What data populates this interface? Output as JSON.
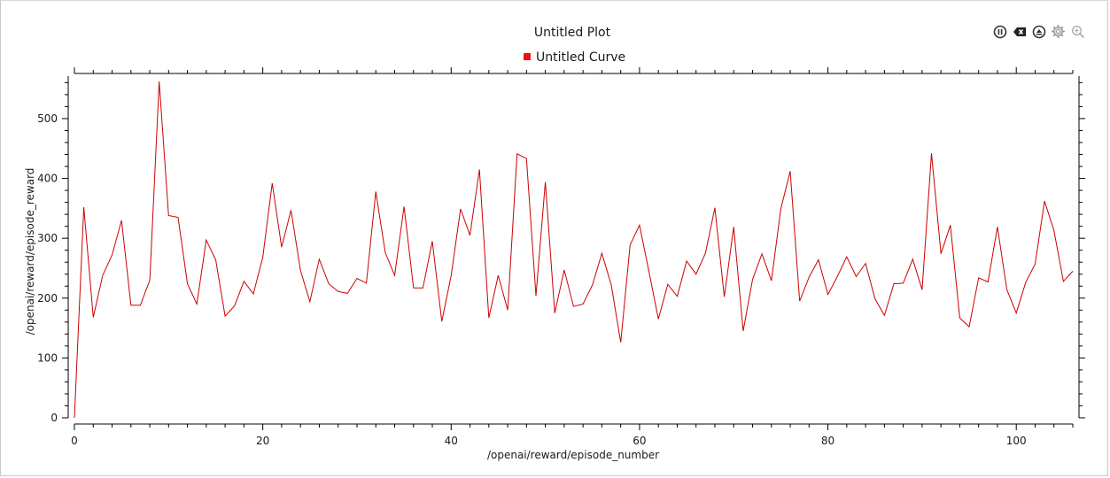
{
  "toolbar": {
    "icons": [
      "pause-icon",
      "clear-icon",
      "eject-icon",
      "settings-icon",
      "zoom-icon"
    ]
  },
  "colors": {
    "curve": "#cc0000",
    "legend_marker": "#ee1111",
    "axis": "#000000"
  },
  "chart_data": {
    "type": "line",
    "title": "Untitled Plot",
    "legend": "top-center",
    "grid": false,
    "xlabel": "/openai/reward/episode_number",
    "ylabel": "/openai/reward/episode_reward",
    "xlim": [
      0,
      106
    ],
    "ylim": [
      0,
      565
    ],
    "xticks": [
      0,
      20,
      40,
      60,
      80,
      100
    ],
    "yticks": [
      0,
      100,
      200,
      300,
      400,
      500
    ],
    "series": [
      {
        "name": "Untitled Curve",
        "x": [
          0,
          1,
          2,
          3,
          4,
          5,
          6,
          7,
          8,
          9,
          10,
          11,
          12,
          13,
          14,
          15,
          16,
          17,
          18,
          19,
          20,
          21,
          22,
          23,
          24,
          25,
          26,
          27,
          28,
          29,
          30,
          31,
          32,
          33,
          34,
          35,
          36,
          37,
          38,
          39,
          40,
          41,
          42,
          43,
          44,
          45,
          46,
          47,
          48,
          49,
          50,
          51,
          52,
          53,
          54,
          55,
          56,
          57,
          58,
          59,
          60,
          61,
          62,
          63,
          64,
          65,
          66,
          67,
          68,
          69,
          70,
          71,
          72,
          73,
          74,
          75,
          76,
          77,
          78,
          79,
          80,
          81,
          82,
          83,
          84,
          85,
          86,
          87,
          88,
          89,
          90,
          91,
          92,
          93,
          94,
          95,
          96,
          97,
          98,
          99,
          100,
          101,
          102,
          103,
          104,
          105,
          106
        ],
        "values": [
          0,
          352,
          168,
          238,
          272,
          330,
          188,
          188,
          230,
          562,
          338,
          335,
          224,
          190,
          297,
          264,
          170,
          187,
          228,
          207,
          268,
          392,
          285,
          347,
          246,
          194,
          265,
          224,
          211,
          208,
          233,
          225,
          378,
          276,
          238,
          353,
          217,
          217,
          295,
          161,
          238,
          349,
          305,
          415,
          167,
          238,
          180,
          441,
          433,
          204,
          394,
          175,
          247,
          186,
          190,
          222,
          275,
          222,
          126,
          289,
          322,
          244,
          165,
          223,
          203,
          262,
          240,
          275,
          351,
          202,
          319,
          145,
          231,
          274,
          229,
          349,
          412,
          195,
          235,
          264,
          206,
          236,
          269,
          236,
          258,
          199,
          171,
          224,
          225,
          265,
          214,
          442,
          274,
          322,
          167,
          152,
          234,
          227,
          319,
          214,
          175,
          226,
          257,
          362,
          313,
          228,
          245
        ]
      }
    ]
  }
}
